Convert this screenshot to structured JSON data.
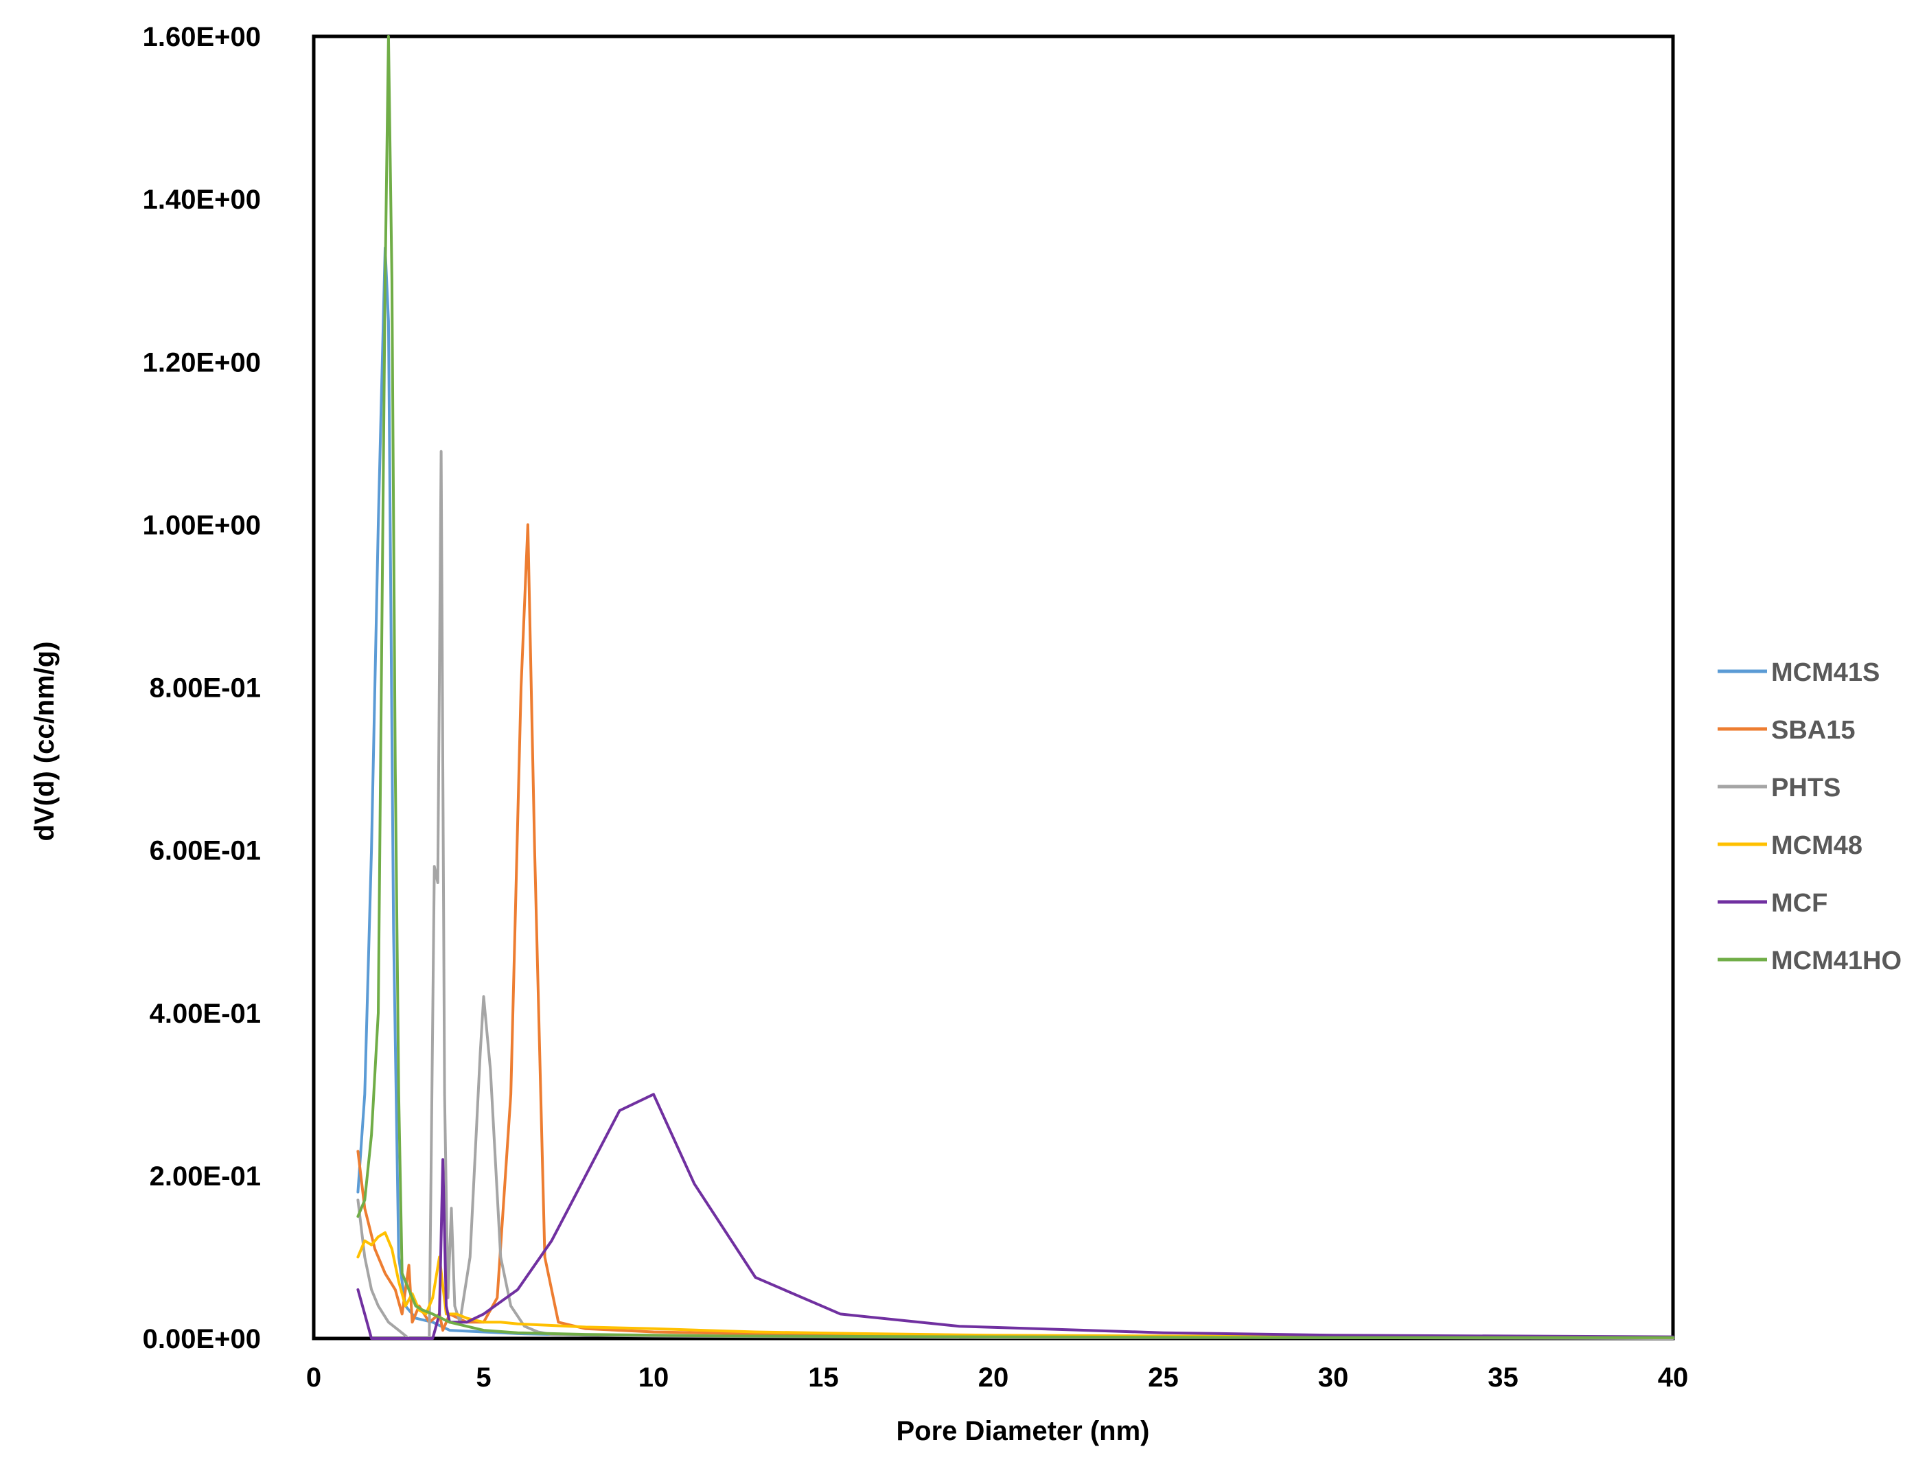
{
  "chart_data": {
    "type": "line",
    "title": "",
    "xlabel": "Pore Diameter (nm)",
    "ylabel": "dV(d) (cc/nm/g)",
    "xlim": [
      0,
      40
    ],
    "ylim": [
      0,
      1.6
    ],
    "x_ticks": [
      0,
      5,
      10,
      15,
      20,
      25,
      30,
      35,
      40
    ],
    "x_tick_labels": [
      "0",
      "5",
      "10",
      "15",
      "20",
      "25",
      "30",
      "35",
      "40"
    ],
    "y_ticks": [
      0,
      0.2,
      0.4,
      0.6,
      0.8,
      1.0,
      1.2,
      1.4,
      1.6
    ],
    "y_tick_labels": [
      "0.00E+00",
      "2.00E-01",
      "4.00E-01",
      "6.00E-01",
      "8.00E-01",
      "1.00E+00",
      "1.20E+00",
      "1.40E+00",
      "1.60E+00"
    ],
    "grid": false,
    "legend_position": "right",
    "series": [
      {
        "name": "MCM41S",
        "color": "#5B9BD5",
        "x": [
          1.3,
          1.5,
          1.7,
          1.9,
          2.1,
          2.2,
          2.35,
          2.5,
          2.7,
          3.0,
          3.5,
          4.0,
          5.0,
          6.0,
          8.0,
          12.0,
          20.0,
          30.0,
          40.0
        ],
        "y": [
          0.18,
          0.3,
          0.6,
          1.0,
          1.34,
          1.25,
          0.5,
          0.1,
          0.04,
          0.025,
          0.02,
          0.01,
          0.008,
          0.006,
          0.004,
          0.003,
          0.002,
          0.001,
          0.001
        ]
      },
      {
        "name": "SBA15",
        "color": "#ED7D31",
        "x": [
          1.3,
          1.5,
          1.8,
          2.1,
          2.4,
          2.6,
          2.8,
          2.9,
          3.1,
          3.4,
          3.7,
          3.8,
          4.0,
          4.5,
          5.0,
          5.4,
          5.8,
          6.1,
          6.3,
          6.5,
          6.8,
          7.2,
          8.0,
          10.0,
          15.0,
          20.0,
          30.0,
          40.0
        ],
        "y": [
          0.23,
          0.16,
          0.11,
          0.08,
          0.06,
          0.03,
          0.09,
          0.02,
          0.04,
          0.02,
          0.03,
          0.01,
          0.03,
          0.02,
          0.02,
          0.05,
          0.3,
          0.8,
          1.0,
          0.6,
          0.1,
          0.02,
          0.012,
          0.008,
          0.004,
          0.003,
          0.002,
          0.001
        ]
      },
      {
        "name": "PHTS",
        "color": "#A5A5A5",
        "x": [
          1.3,
          1.5,
          1.7,
          1.9,
          2.2,
          2.5,
          2.8,
          3.1,
          3.4,
          3.55,
          3.65,
          3.75,
          3.85,
          3.95,
          4.05,
          4.15,
          4.3,
          4.6,
          4.9,
          5.0,
          5.2,
          5.5,
          5.8,
          6.2,
          6.6,
          7.0,
          8.0,
          10.0,
          15.0,
          20.0,
          30.0,
          40.0
        ],
        "y": [
          0.17,
          0.1,
          0.06,
          0.04,
          0.02,
          0.01,
          0.0,
          0.0,
          0.0,
          0.58,
          0.56,
          1.09,
          0.3,
          0.05,
          0.16,
          0.04,
          0.02,
          0.1,
          0.35,
          0.42,
          0.33,
          0.1,
          0.04,
          0.015,
          0.008,
          0.005,
          0.004,
          0.003,
          0.002,
          0.001,
          0.001,
          0.0
        ]
      },
      {
        "name": "MCM48",
        "color": "#FFC000",
        "x": [
          1.3,
          1.5,
          1.7,
          1.9,
          2.1,
          2.3,
          2.5,
          2.7,
          2.9,
          3.1,
          3.3,
          3.5,
          3.7,
          3.9,
          4.2,
          4.5,
          5.0,
          5.5,
          6.0,
          7.0,
          8.0,
          10.0,
          13.0,
          16.0,
          20.0,
          25.0,
          30.0,
          40.0
        ],
        "y": [
          0.1,
          0.12,
          0.115,
          0.125,
          0.13,
          0.11,
          0.07,
          0.04,
          0.055,
          0.035,
          0.03,
          0.05,
          0.1,
          0.03,
          0.03,
          0.025,
          0.02,
          0.02,
          0.018,
          0.016,
          0.014,
          0.012,
          0.008,
          0.006,
          0.004,
          0.003,
          0.002,
          0.001
        ]
      },
      {
        "name": "MCF",
        "color": "#7030A0",
        "x": [
          1.3,
          1.5,
          1.7,
          2.0,
          2.5,
          3.0,
          3.5,
          3.7,
          3.8,
          3.9,
          4.0,
          4.5,
          5.0,
          6.0,
          7.0,
          7.5,
          8.0,
          9.0,
          10.0,
          11.2,
          13.0,
          15.5,
          19.0,
          25.0,
          30.0,
          40.0
        ],
        "y": [
          0.06,
          0.03,
          0.0,
          0.0,
          0.0,
          0.0,
          0.0,
          0.03,
          0.22,
          0.04,
          0.02,
          0.02,
          0.03,
          0.06,
          0.12,
          0.16,
          0.2,
          0.28,
          0.3,
          0.19,
          0.075,
          0.03,
          0.015,
          0.007,
          0.004,
          0.002
        ]
      },
      {
        "name": "MCM41HO",
        "color": "#70AD47",
        "x": [
          1.3,
          1.5,
          1.7,
          1.9,
          2.1,
          2.2,
          2.3,
          2.4,
          2.5,
          2.6,
          2.8,
          3.0,
          3.2,
          3.5,
          4.0,
          5.0,
          6.0,
          8.0,
          12.0,
          20.0,
          30.0,
          40.0
        ],
        "y": [
          0.15,
          0.17,
          0.25,
          0.4,
          1.3,
          1.6,
          1.3,
          0.7,
          0.3,
          0.08,
          0.06,
          0.04,
          0.035,
          0.03,
          0.02,
          0.01,
          0.007,
          0.005,
          0.003,
          0.002,
          0.001,
          0.001
        ]
      }
    ]
  }
}
